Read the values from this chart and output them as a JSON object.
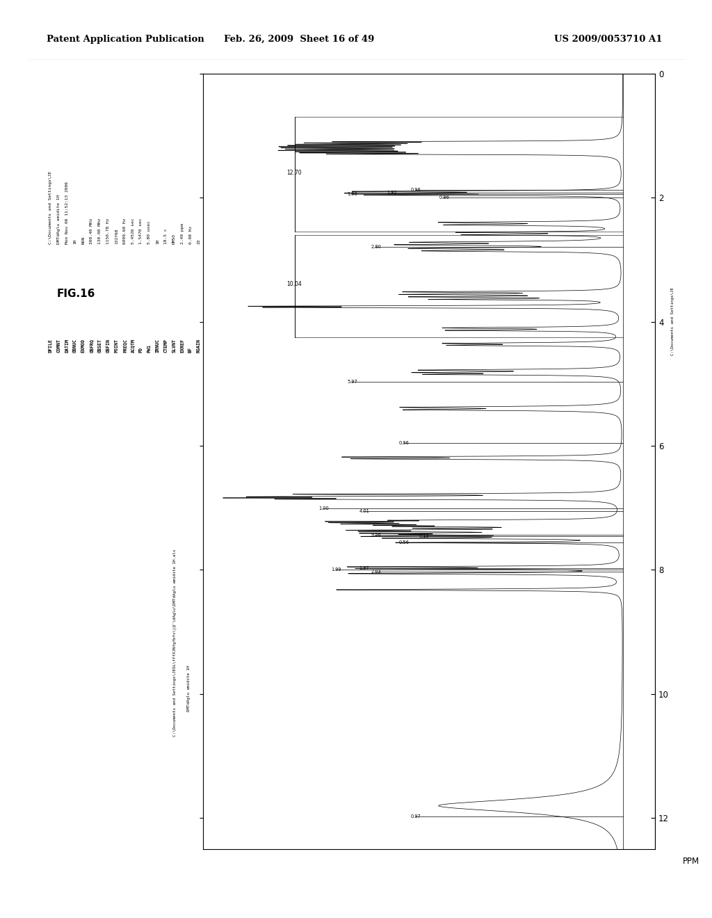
{
  "header_left": "Patent Application Publication",
  "header_center": "Feb. 26, 2009  Sheet 16 of 49",
  "header_right": "US 2009/0053710 A1",
  "fig_label": "FIG.16",
  "param_line1": "C:\\Documents and Settings\\JE",
  "param_line2": "DMTdAglu amidite 1H",
  "param_line3": "Mon Nov 06 11:52:13 2006",
  "param_line4": "1H",
  "param_line5": "NON",
  "param_obfrq": "300.40 MHz",
  "param_obset": "130.00 MHz",
  "param_obfin": "1150.78 Hz",
  "param_point": "132768",
  "param_freqc": "6009.60 Hz",
  "param_acqtm": "5.4526 sec",
  "param_pd": "1.5470 sec",
  "param_pw1": "5.80 usec",
  "param_irnuc": "1H",
  "param_ctemp": "18.5 c",
  "param_slvnt": "DMSO",
  "param_exref": "2.49 ppm",
  "param_bf": "0.08 Hz",
  "param_rgain": "23",
  "filepath_left": "C:\\Documents and Settings\\JEOL\\fffXJNfgfbfv\\|@'\\dAglu\\DMTdAglu amidite 1H.als",
  "filename_left": "DMTdAglu amidite 1H",
  "filepath_right": "C:\\Documents and Settings\\JE",
  "ppm_axis_label": "PPM",
  "ppm_ticks": [
    0,
    2,
    4,
    6,
    8,
    10,
    12
  ],
  "ppm_min": 0,
  "ppm_max": 12.5,
  "background_color": "#ffffff"
}
